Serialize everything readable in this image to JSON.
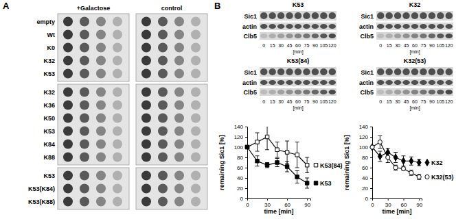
{
  "panel_labels": [
    "A",
    "B"
  ],
  "spot_assay": {
    "conditions": [
      "+Galactose",
      "control"
    ],
    "groups": [
      [
        "empty",
        "Wt",
        "K0",
        "K32",
        "K53"
      ],
      [
        "K32",
        "K36",
        "K50",
        "K53",
        "K84",
        "K88"
      ],
      [
        "K53",
        "K53(K84)",
        "K53(K88)"
      ]
    ]
  },
  "blots": {
    "rows": [
      "Sic1",
      "actin",
      "Clb5"
    ],
    "time_points": [
      0,
      15,
      30,
      45,
      60,
      75,
      90,
      105,
      120
    ],
    "time_unit": "[min]",
    "titles": [
      "K53",
      "K53(84)",
      "K32",
      "K32(53)"
    ]
  },
  "chart_data": [
    {
      "type": "line",
      "x_label": "time [min]",
      "y_label": "remaining Sic1 [%]",
      "x": [
        0,
        15,
        30,
        45,
        60,
        75,
        90
      ],
      "xlim": [
        0,
        95
      ],
      "xticks": [
        0,
        30,
        60,
        90
      ],
      "ylim": [
        0,
        140
      ],
      "yticks": [
        0,
        20,
        40,
        60,
        80,
        100,
        120,
        140
      ],
      "legend": "right",
      "series": [
        {
          "name": "K53(84)",
          "color": "#000000",
          "marker": "square-open",
          "values": [
            100,
            110,
            120,
            95,
            90,
            85,
            65
          ],
          "errors": [
            0,
            18,
            25,
            15,
            22,
            25,
            15
          ]
        },
        {
          "name": "K53",
          "color": "#000000",
          "marker": "square",
          "values": [
            100,
            73,
            65,
            70,
            62,
            42,
            30
          ],
          "errors": [
            0,
            10,
            5,
            8,
            10,
            12,
            10
          ]
        }
      ]
    },
    {
      "type": "line",
      "x_label": "time [min]",
      "y_label": "remaining Sic1 [%]",
      "x": [
        0,
        15,
        30,
        45,
        60,
        75,
        90
      ],
      "xlim": [
        0,
        95
      ],
      "xticks": [
        0,
        30,
        60,
        90
      ],
      "ylim": [
        0,
        140
      ],
      "yticks": [
        0,
        20,
        40,
        60,
        80,
        100,
        120,
        140
      ],
      "legend": "right",
      "series": [
        {
          "name": "K32",
          "color": "#000000",
          "marker": "diamond",
          "values": [
            100,
            82,
            90,
            80,
            73,
            73,
            70
          ],
          "errors": [
            0,
            10,
            8,
            10,
            10,
            8,
            6
          ]
        },
        {
          "name": "K32(53)",
          "color": "#000000",
          "marker": "circle-open",
          "values": [
            100,
            110,
            80,
            60,
            58,
            50,
            42
          ],
          "errors": [
            0,
            12,
            10,
            5,
            3,
            5,
            5
          ]
        }
      ]
    }
  ]
}
